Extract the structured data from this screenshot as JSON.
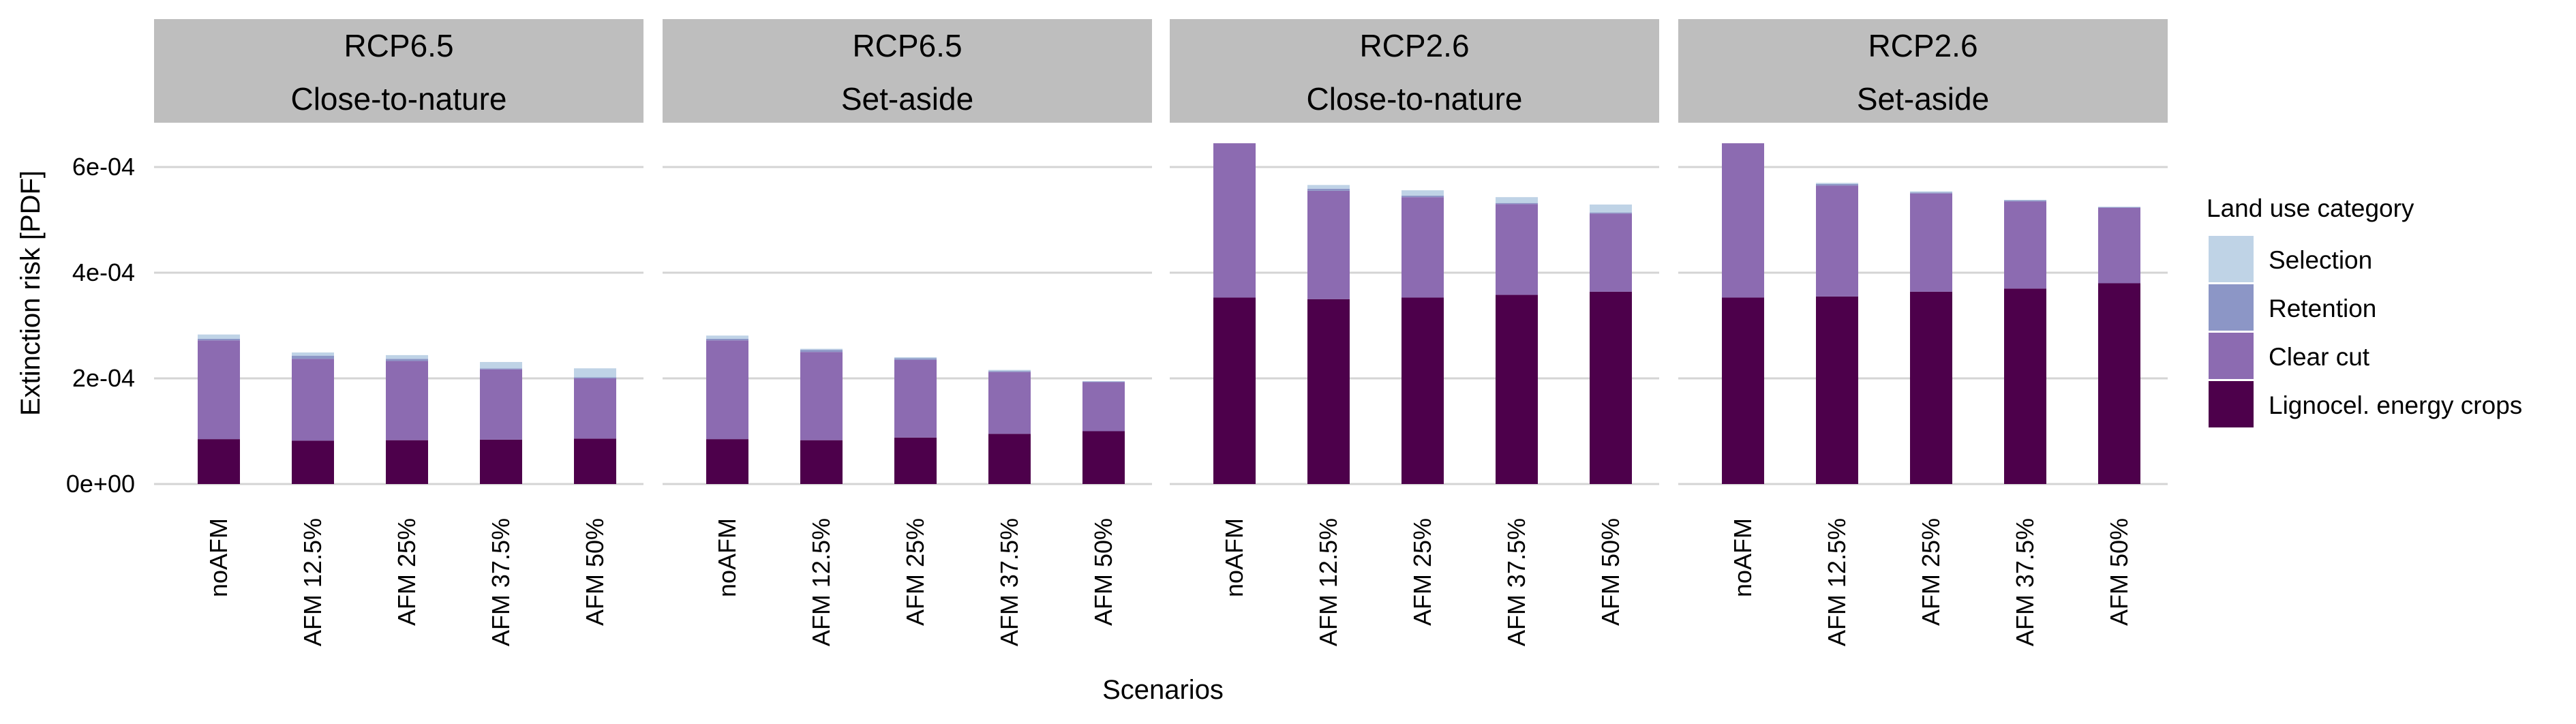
{
  "chart_data": {
    "type": "bar",
    "stacked": true,
    "xlabel": "Scenarios",
    "ylabel": "Extinction risk [PDF]",
    "ylim": [
      0,
      0.00068
    ],
    "yticks": [
      0,
      0.0002,
      0.0004,
      0.0006
    ],
    "ytick_labels": [
      "0e+00",
      "2e-04",
      "4e-04",
      "6e-04"
    ],
    "categories": [
      "noAFM",
      "AFM 12.5%",
      "AFM 25%",
      "AFM 37.5%",
      "AFM 50%"
    ],
    "legend": {
      "title": "Land use category",
      "position": "right",
      "entries": [
        {
          "name": "Selection",
          "color": "#bfd3e6"
        },
        {
          "name": "Retention",
          "color": "#8c96c6"
        },
        {
          "name": "Clear cut",
          "color": "#8c6bb1"
        },
        {
          "name": "Lignocel. energy crops",
          "color": "#4d004b"
        }
      ]
    },
    "grid": "horizontal",
    "panels": [
      {
        "strip_line1": "RCP6.5",
        "strip_line2": "Close-to-nature",
        "series": [
          {
            "name": "Lignocel. energy crops",
            "values": [
              8.5e-05,
              8.2e-05,
              8.3e-05,
              8.4e-05,
              8.6e-05
            ]
          },
          {
            "name": "Clear cut",
            "values": [
              0.000187,
              0.000155,
              0.00015,
              0.000133,
              0.000114
            ]
          },
          {
            "name": "Retention",
            "values": [
              3e-06,
              6e-06,
              4e-06,
              2e-06,
              2e-06
            ]
          },
          {
            "name": "Selection",
            "values": [
              8e-06,
              6e-06,
              7e-06,
              1.2e-05,
              1.7e-05
            ]
          }
        ]
      },
      {
        "strip_line1": "RCP6.5",
        "strip_line2": "Set-aside",
        "series": [
          {
            "name": "Lignocel. energy crops",
            "values": [
              8.5e-05,
              8.3e-05,
              8.8e-05,
              9.5e-05,
              0.0001
            ]
          },
          {
            "name": "Clear cut",
            "values": [
              0.000187,
              0.000167,
              0.000147,
              0.000117,
              9.3e-05
            ]
          },
          {
            "name": "Retention",
            "values": [
              3e-06,
              4e-06,
              3e-06,
              2e-06,
              1e-06
            ]
          },
          {
            "name": "Selection",
            "values": [
              6e-06,
              2e-06,
              2e-06,
              2e-06,
              1e-06
            ]
          }
        ]
      },
      {
        "strip_line1": "RCP2.6",
        "strip_line2": "Close-to-nature",
        "series": [
          {
            "name": "Lignocel. energy crops",
            "values": [
              0.000353,
              0.00035,
              0.000353,
              0.000358,
              0.000364
            ]
          },
          {
            "name": "Clear cut",
            "values": [
              0.000292,
              0.000205,
              0.00019,
              0.000172,
              0.000148
            ]
          },
          {
            "name": "Retention",
            "values": [
              0.0,
              4e-06,
              3e-06,
              2e-06,
              2e-06
            ]
          },
          {
            "name": "Selection",
            "values": [
              0.0,
              7e-06,
              1e-05,
              1.1e-05,
              1.5e-05
            ]
          }
        ]
      },
      {
        "strip_line1": "RCP2.6",
        "strip_line2": "Set-aside",
        "series": [
          {
            "name": "Lignocel. energy crops",
            "values": [
              0.000353,
              0.000355,
              0.000364,
              0.00037,
              0.00038
            ]
          },
          {
            "name": "Clear cut",
            "values": [
              0.000292,
              0.00021,
              0.000186,
              0.000165,
              0.000143
            ]
          },
          {
            "name": "Retention",
            "values": [
              0.0,
              3e-06,
              2e-06,
              2e-06,
              1e-06
            ]
          },
          {
            "name": "Selection",
            "values": [
              0.0,
              2e-06,
              2e-06,
              1e-06,
              1e-06
            ]
          }
        ]
      }
    ]
  }
}
